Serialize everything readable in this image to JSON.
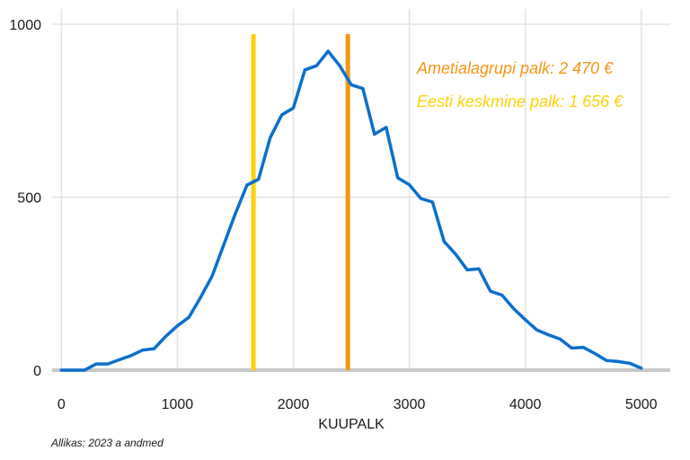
{
  "chart_data": {
    "type": "line",
    "title": "",
    "xlabel": "KUUPALK",
    "ylabel": "",
    "xlim": [
      -80,
      5250
    ],
    "ylim": [
      0,
      1000
    ],
    "x_ticks": [
      0,
      1000,
      2000,
      3000,
      4000,
      5000
    ],
    "x_tick_labels": [
      "0",
      "1000",
      "2000",
      "3000",
      "4000",
      "5000"
    ],
    "y_ticks": [
      0,
      500,
      1000
    ],
    "y_tick_labels": [
      "0",
      "500",
      "1000"
    ],
    "grid": true,
    "series": [
      {
        "color": "#0b6fcc",
        "x": [
          0,
          100,
          200,
          300,
          400,
          500,
          600,
          700,
          800,
          900,
          1000,
          1100,
          1200,
          1300,
          1400,
          1500,
          1600,
          1700,
          1800,
          1900,
          2000,
          2100,
          2200,
          2300,
          2400,
          2500,
          2600,
          2700,
          2800,
          2900,
          3000,
          3100,
          3200,
          3300,
          3400,
          3500,
          3600,
          3700,
          3800,
          3900,
          4000,
          4100,
          4200,
          4300,
          4400,
          4500,
          4600,
          4700,
          4800,
          4900,
          5000
        ],
        "y": [
          0,
          0,
          0,
          18,
          18,
          30,
          42,
          58,
          62,
          98,
          128,
          153,
          210,
          272,
          362,
          452,
          535,
          552,
          672,
          738,
          758,
          868,
          880,
          922,
          880,
          825,
          814,
          682,
          702,
          556,
          536,
          496,
          486,
          372,
          335,
          290,
          293,
          228,
          217,
          178,
          146,
          116,
          102,
          90,
          64,
          66,
          48,
          28,
          25,
          20,
          6
        ]
      }
    ],
    "reference_lines": [
      {
        "x": 2470,
        "color": "#f39614"
      },
      {
        "x": 1656,
        "color": "#fdd20a"
      }
    ],
    "annotations": [
      {
        "text": "Ametialagrupi palk: 2 470 €",
        "color": "#f39614"
      },
      {
        "text": "Eesti keskmine palk: 1 656 €",
        "color": "#fdd20a"
      }
    ]
  },
  "footer": {
    "source": "Allikas: 2023 a andmed"
  }
}
